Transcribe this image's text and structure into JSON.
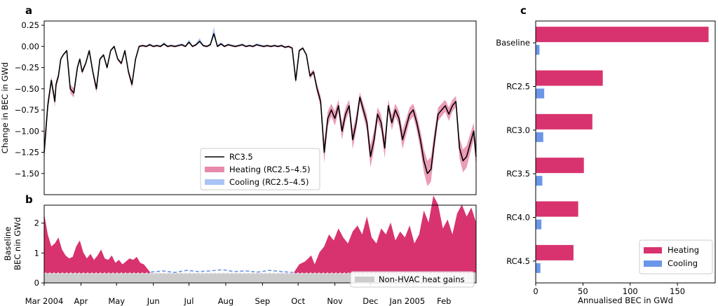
{
  "chart_data": [
    {
      "panel": "a",
      "type": "line",
      "ylabel": "Change in BEC in GWd",
      "ylim": [
        -1.75,
        0.3
      ],
      "yticks": [
        "0.25",
        "0.00",
        "−0.25",
        "−0.50",
        "−0.75",
        "−1.00",
        "−1.25",
        "−1.50"
      ],
      "ytick_values": [
        0.25,
        0.0,
        -0.25,
        -0.5,
        -0.75,
        -1.0,
        -1.25,
        -1.5
      ],
      "x_range": [
        0,
        364
      ],
      "legend": {
        "placement": "lower-center",
        "entries": [
          "RC3.5",
          "Heating (RC2.5–4.5)",
          "Cooling (RC2.5–4.5)"
        ]
      },
      "series": [
        {
          "name": "RC3.5",
          "style": "line",
          "color": "#000000",
          "x": [
            0,
            3,
            6,
            9,
            10,
            12,
            14,
            16,
            19,
            22,
            25,
            28,
            30,
            32,
            35,
            38,
            41,
            44,
            47,
            50,
            53,
            56,
            59,
            62,
            65,
            68,
            71,
            74,
            77,
            80,
            83,
            86,
            89,
            92,
            95,
            98,
            101,
            104,
            107,
            110,
            113,
            116,
            119,
            122,
            125,
            128,
            131,
            134,
            137,
            140,
            143,
            146,
            149,
            152,
            155,
            158,
            161,
            164,
            167,
            170,
            173,
            176,
            179,
            182,
            185,
            188,
            191,
            194,
            197,
            200,
            203,
            206,
            209,
            212,
            215,
            218,
            221,
            224,
            227,
            230,
            233,
            236,
            239,
            242,
            245,
            248,
            251,
            254,
            257,
            260,
            263,
            266,
            269,
            272,
            275,
            278,
            281,
            284,
            287,
            290,
            293,
            296,
            299,
            302,
            305,
            308,
            311,
            314,
            317,
            320,
            323,
            326,
            329,
            332,
            335,
            338,
            341,
            344,
            347,
            350,
            353,
            356,
            359,
            362,
            364
          ],
          "y": [
            -1.25,
            -0.7,
            -0.4,
            -0.65,
            -0.45,
            -0.35,
            -0.15,
            -0.1,
            -0.05,
            -0.5,
            -0.55,
            -0.25,
            -0.15,
            -0.3,
            -0.2,
            -0.05,
            -0.3,
            -0.5,
            -0.15,
            -0.1,
            -0.25,
            -0.05,
            0.0,
            -0.15,
            -0.2,
            -0.05,
            -0.3,
            -0.45,
            -0.15,
            0.0,
            0.01,
            0.0,
            0.02,
            0.0,
            0.01,
            0.0,
            0.03,
            0.0,
            0.01,
            0.0,
            0.01,
            0.02,
            0.0,
            0.05,
            0.0,
            0.02,
            0.06,
            0.01,
            0.0,
            0.02,
            0.15,
            0.0,
            0.03,
            0.0,
            0.02,
            0.01,
            0.0,
            0.01,
            0.02,
            0.0,
            0.01,
            0.0,
            0.02,
            0.01,
            0.0,
            0.01,
            0.0,
            0.01,
            0.0,
            0.01,
            -0.01,
            0.0,
            -0.02,
            -0.4,
            -0.05,
            -0.02,
            -0.1,
            -0.35,
            -0.3,
            -0.5,
            -0.65,
            -1.25,
            -0.85,
            -0.75,
            -0.85,
            -0.7,
            -1.0,
            -0.8,
            -0.7,
            -1.1,
            -0.9,
            -0.6,
            -0.75,
            -0.9,
            -1.3,
            -1.1,
            -0.8,
            -0.9,
            -1.2,
            -0.7,
            -0.9,
            -0.75,
            -0.85,
            -1.1,
            -0.95,
            -0.8,
            -0.75,
            -0.9,
            -1.1,
            -1.35,
            -1.5,
            -1.45,
            -1.1,
            -0.8,
            -0.75,
            -0.7,
            -0.8,
            -0.7,
            -0.65,
            -1.2,
            -1.35,
            -1.3,
            -1.15,
            -1.0,
            -1.3
          ]
        },
        {
          "name": "Heating (RC2.5–4.5)",
          "style": "band",
          "color": "#e889ac",
          "band_width": 0.1
        },
        {
          "name": "Cooling (RC2.5–4.5)",
          "style": "band",
          "color": "#a9c4f5"
        }
      ]
    },
    {
      "panel": "b",
      "type": "area",
      "ylabel": [
        "Baseline",
        "BEC nin GWd"
      ],
      "ylim": [
        0,
        2.6
      ],
      "yticks": [
        "0",
        "1",
        "2"
      ],
      "ytick_values": [
        0,
        1,
        2
      ],
      "x_range": [
        0,
        364
      ],
      "xticks": [
        "Mar 2004",
        "Apr",
        "May",
        "Jun",
        "Jul",
        "Aug",
        "Sep",
        "Oct",
        "Nov",
        "Dec",
        "Jan 2005",
        "Feb"
      ],
      "xtick_days": [
        0,
        31,
        61,
        92,
        122,
        153,
        184,
        214,
        245,
        275,
        306,
        337
      ],
      "legend": {
        "placement": "lower-right",
        "entries": [
          "Non-HVAC heat gains"
        ]
      },
      "series": [
        {
          "name": "Heating",
          "style": "area",
          "color": "#d8336f",
          "x": [
            0,
            3,
            6,
            9,
            12,
            15,
            18,
            21,
            24,
            27,
            30,
            33,
            36,
            39,
            42,
            45,
            48,
            51,
            54,
            57,
            60,
            63,
            66,
            69,
            72,
            75,
            78,
            81,
            84,
            90,
            100,
            110,
            120,
            130,
            140,
            150,
            160,
            170,
            180,
            190,
            200,
            210,
            215,
            220,
            225,
            228,
            232,
            236,
            240,
            244,
            248,
            252,
            256,
            260,
            264,
            268,
            272,
            276,
            280,
            284,
            288,
            292,
            296,
            300,
            304,
            308,
            312,
            316,
            320,
            324,
            328,
            332,
            336,
            340,
            344,
            348,
            352,
            356,
            360,
            364
          ],
          "y": [
            2.0,
            1.3,
            0.9,
            1.0,
            1.2,
            0.8,
            0.6,
            0.5,
            0.55,
            0.9,
            1.1,
            0.7,
            0.5,
            0.65,
            0.45,
            0.6,
            0.8,
            0.5,
            0.45,
            0.6,
            0.35,
            0.45,
            0.3,
            0.4,
            0.5,
            0.45,
            0.55,
            0.35,
            0.3,
            0,
            0,
            0,
            0,
            0,
            0,
            0,
            0,
            0,
            0,
            0,
            0,
            0,
            0.3,
            0.4,
            0.6,
            0.3,
            0.7,
            0.9,
            1.3,
            1.1,
            1.5,
            1.2,
            1.0,
            1.4,
            1.6,
            1.3,
            1.9,
            1.2,
            1.0,
            1.5,
            1.3,
            1.7,
            1.1,
            1.4,
            1.2,
            1.6,
            1.0,
            1.3,
            2.1,
            1.7,
            2.6,
            2.3,
            1.5,
            1.8,
            1.3,
            2.0,
            2.3,
            1.9,
            2.2,
            1.7
          ]
        },
        {
          "name": "Cooling",
          "style": "dashed-line",
          "color": "#6b96e8",
          "x": [
            90,
            100,
            110,
            120,
            130,
            140,
            150,
            160,
            170,
            180,
            190,
            200,
            210
          ],
          "y": [
            0.36,
            0.4,
            0.35,
            0.42,
            0.38,
            0.4,
            0.44,
            0.38,
            0.4,
            0.36,
            0.42,
            0.38,
            0.35
          ]
        },
        {
          "name": "Non-HVAC heat gains",
          "style": "dashed-area",
          "color": "#cccccc",
          "value": 0.32
        }
      ]
    },
    {
      "panel": "c",
      "type": "bar",
      "orientation": "horizontal",
      "xlabel": "Annualised BEC in GWd",
      "xlim": [
        0,
        190
      ],
      "xticks": [
        "0",
        "50",
        "100",
        "150"
      ],
      "xtick_values": [
        0,
        50,
        100,
        150
      ],
      "categories": [
        "Baseline",
        "RC2.5",
        "RC3.0",
        "RC3.5",
        "RC4.0",
        "RC4.5"
      ],
      "legend": {
        "placement": "lower-right",
        "entries": [
          "Heating",
          "Cooling"
        ]
      },
      "series": [
        {
          "name": "Heating",
          "color": "#d8336f",
          "values": [
            183,
            71,
            60,
            51,
            45,
            40
          ]
        },
        {
          "name": "Cooling",
          "color": "#6b96e8",
          "values": [
            4,
            9,
            8,
            7,
            6,
            5
          ]
        }
      ]
    }
  ]
}
